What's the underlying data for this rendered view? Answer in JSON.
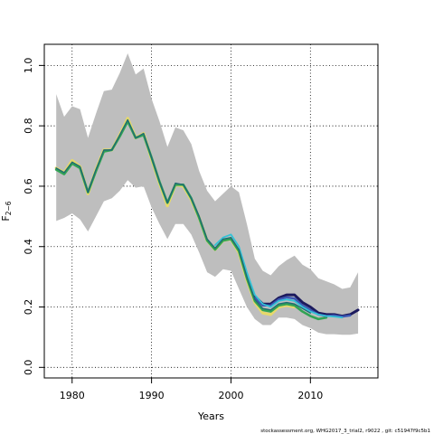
{
  "chart_data": {
    "type": "line",
    "xlabel": "Years",
    "ylabel": "F",
    "ylabel_sub": "2−6",
    "footer": "stockassessment.org, WHG2017_3_trial2, r9022 , git: c51947f9c5b1",
    "xlim": [
      1976.5,
      2018.5
    ],
    "ylim": [
      -0.035,
      1.07
    ],
    "x_ticks": [
      1980,
      1990,
      2000,
      2010
    ],
    "y_ticks": [
      0.0,
      0.2,
      0.4,
      0.6,
      0.8,
      1.0
    ],
    "y_tick_labels": [
      "0.0",
      "0.2",
      "0.4",
      "0.6",
      "0.8",
      "1.0"
    ],
    "grid": true,
    "band_color": "#bebebe",
    "confidence_band": {
      "x": [
        1978,
        1979,
        1980,
        1981,
        1982,
        1983,
        1984,
        1985,
        1986,
        1987,
        1988,
        1989,
        1990,
        1991,
        1992,
        1993,
        1994,
        1995,
        1996,
        1997,
        1998,
        1999,
        2000,
        2001,
        2002,
        2003,
        2004,
        2005,
        2006,
        2007,
        2008,
        2009,
        2010,
        2011,
        2012,
        2013,
        2014,
        2015,
        2016
      ],
      "upper": [
        0.905,
        0.83,
        0.865,
        0.855,
        0.76,
        0.84,
        0.915,
        0.92,
        0.975,
        1.04,
        0.97,
        0.99,
        0.89,
        0.815,
        0.73,
        0.795,
        0.785,
        0.74,
        0.65,
        0.585,
        0.55,
        0.575,
        0.6,
        0.58,
        0.475,
        0.36,
        0.32,
        0.305,
        0.335,
        0.355,
        0.37,
        0.34,
        0.325,
        0.295,
        0.285,
        0.275,
        0.26,
        0.265,
        0.315
      ],
      "lower": [
        0.485,
        0.495,
        0.51,
        0.49,
        0.45,
        0.5,
        0.55,
        0.56,
        0.585,
        0.62,
        0.595,
        0.6,
        0.53,
        0.475,
        0.425,
        0.475,
        0.475,
        0.44,
        0.38,
        0.315,
        0.3,
        0.325,
        0.32,
        0.26,
        0.2,
        0.16,
        0.14,
        0.14,
        0.165,
        0.165,
        0.16,
        0.14,
        0.13,
        0.115,
        0.11,
        0.11,
        0.108,
        0.108,
        0.112
      ]
    },
    "series": [
      {
        "color": "#e6d96a",
        "width": 3.2,
        "x": [
          1978,
          1979,
          1980,
          1981,
          1982,
          1983,
          1984,
          1985,
          1986,
          1987,
          1988,
          1989,
          1990,
          1991,
          1992,
          1993,
          1994,
          1995,
          1996,
          1997,
          1998,
          1999,
          2000,
          2001,
          2002,
          2003,
          2004,
          2005,
          2006,
          2007,
          2008
        ],
        "y": [
          0.66,
          0.645,
          0.685,
          0.665,
          0.575,
          0.655,
          0.72,
          0.72,
          0.77,
          0.825,
          0.76,
          0.775,
          0.69,
          0.61,
          0.535,
          0.605,
          0.6,
          0.555,
          0.495,
          0.42,
          0.39,
          0.42,
          0.425,
          0.38,
          0.29,
          0.215,
          0.18,
          0.175,
          0.2,
          0.205,
          0.2
        ]
      },
      {
        "color": "#31a354",
        "width": 2.6,
        "x": [
          1978,
          1979,
          1980,
          1981,
          1982,
          1983,
          1984,
          1985,
          1986,
          1987,
          1988,
          1989,
          1990,
          1991,
          1992,
          1993,
          1994,
          1995,
          1996,
          1997,
          1998,
          1999,
          2000,
          2001,
          2002,
          2003,
          2004,
          2005,
          2006,
          2007,
          2008,
          2009,
          2010,
          2011,
          2012
        ],
        "y": [
          0.655,
          0.64,
          0.675,
          0.66,
          0.58,
          0.65,
          0.715,
          0.72,
          0.765,
          0.815,
          0.76,
          0.77,
          0.695,
          0.615,
          0.545,
          0.605,
          0.605,
          0.56,
          0.495,
          0.42,
          0.39,
          0.42,
          0.425,
          0.385,
          0.295,
          0.22,
          0.19,
          0.185,
          0.205,
          0.21,
          0.205,
          0.185,
          0.17,
          0.16,
          0.165
        ]
      },
      {
        "color": "#1c1a5e",
        "width": 3.0,
        "x": [
          2003,
          2004,
          2005,
          2006,
          2007,
          2008,
          2009,
          2010,
          2011,
          2012,
          2013,
          2014,
          2015,
          2016
        ],
        "y": [
          0.235,
          0.21,
          0.21,
          0.23,
          0.24,
          0.24,
          0.215,
          0.2,
          0.18,
          0.175,
          0.175,
          0.17,
          0.175,
          0.19
        ]
      },
      {
        "color": "#3b58b4",
        "width": 2.4,
        "x": [
          2003,
          2004,
          2005,
          2006,
          2007,
          2008,
          2009,
          2010,
          2011,
          2012,
          2013,
          2014,
          2015
        ],
        "y": [
          0.23,
          0.205,
          0.205,
          0.225,
          0.232,
          0.228,
          0.205,
          0.19,
          0.175,
          0.17,
          0.172,
          0.168,
          0.172
        ]
      },
      {
        "color": "#33c2d6",
        "width": 1.8,
        "x": [
          1998,
          1999,
          2000,
          2001,
          2002,
          2003,
          2004,
          2005,
          2006,
          2007,
          2008,
          2009,
          2010,
          2011,
          2012,
          2013,
          2014
        ],
        "y": [
          0.405,
          0.43,
          0.44,
          0.4,
          0.315,
          0.24,
          0.21,
          0.2,
          0.22,
          0.225,
          0.22,
          0.2,
          0.185,
          0.175,
          0.17,
          0.168,
          0.165
        ]
      },
      {
        "color": "#1f6b73",
        "width": 1.4,
        "x": [
          1978,
          1979,
          1980,
          1981,
          1982,
          1983,
          1984,
          1985,
          1986,
          1987,
          1988,
          1989,
          1990,
          1991,
          1992,
          1993,
          1994,
          1995,
          1996,
          1997,
          1998,
          1999,
          2000,
          2001,
          2002,
          2003,
          2004,
          2005,
          2006,
          2007,
          2008,
          2009,
          2010
        ],
        "y": [
          0.66,
          0.645,
          0.68,
          0.665,
          0.58,
          0.655,
          0.72,
          0.72,
          0.77,
          0.82,
          0.76,
          0.775,
          0.695,
          0.615,
          0.545,
          0.61,
          0.605,
          0.56,
          0.5,
          0.425,
          0.395,
          0.425,
          0.43,
          0.39,
          0.3,
          0.225,
          0.195,
          0.19,
          0.21,
          0.215,
          0.21,
          0.195,
          0.18
        ]
      }
    ]
  }
}
